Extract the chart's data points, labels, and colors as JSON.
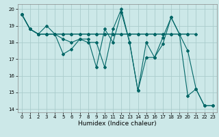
{
  "title": "",
  "xlabel": "Humidex (Indice chaleur)",
  "background_color": "#cce8e8",
  "grid_color": "#aacccc",
  "line_color": "#006666",
  "xlim": [
    -0.5,
    23.5
  ],
  "ylim": [
    13.8,
    20.3
  ],
  "yticks": [
    14,
    15,
    16,
    17,
    18,
    19,
    20
  ],
  "xticks": [
    0,
    1,
    2,
    3,
    4,
    5,
    6,
    7,
    8,
    9,
    10,
    11,
    12,
    13,
    14,
    15,
    16,
    17,
    18,
    19,
    20,
    21,
    22,
    23
  ],
  "series1_x": [
    0,
    1,
    2,
    3,
    4,
    5,
    6,
    7,
    8,
    9,
    10,
    11,
    12,
    13,
    14,
    15,
    16,
    17,
    18,
    19,
    20
  ],
  "series1_y": [
    19.7,
    18.8,
    18.5,
    18.5,
    18.5,
    18.5,
    18.5,
    18.5,
    18.5,
    18.5,
    18.5,
    18.5,
    18.5,
    18.5,
    18.5,
    18.5,
    18.5,
    18.5,
    18.5,
    18.5,
    18.5
  ],
  "series2_x": [
    0,
    1,
    2,
    3,
    4,
    5,
    6,
    7,
    8,
    9,
    10,
    11,
    12,
    13,
    14,
    15,
    16,
    17,
    18,
    19,
    20,
    21,
    22,
    23
  ],
  "series2_y": [
    19.7,
    18.8,
    18.5,
    19.0,
    18.5,
    17.3,
    17.6,
    18.2,
    18.2,
    16.5,
    18.8,
    18.0,
    19.8,
    18.0,
    15.1,
    18.0,
    17.1,
    18.3,
    19.5,
    18.5,
    17.5,
    15.2,
    14.2,
    14.2
  ],
  "series3_x": [
    0,
    1,
    2,
    3,
    4,
    5,
    6,
    7,
    8,
    9,
    10,
    11,
    12,
    13,
    14,
    15,
    16,
    17,
    18,
    19,
    20,
    21
  ],
  "series3_y": [
    19.7,
    18.8,
    18.5,
    18.5,
    18.5,
    18.5,
    18.5,
    18.5,
    18.5,
    18.5,
    18.5,
    18.5,
    18.5,
    18.5,
    18.5,
    18.5,
    18.5,
    18.5,
    18.5,
    18.5,
    18.5,
    18.5
  ],
  "series4_x": [
    0,
    1,
    2,
    3,
    4,
    5,
    6,
    7,
    8,
    9,
    10,
    11,
    12,
    13,
    14,
    15,
    16,
    17,
    18,
    19,
    20,
    21,
    22,
    23
  ],
  "series4_y": [
    19.7,
    18.8,
    18.5,
    18.5,
    18.5,
    18.2,
    18.0,
    18.2,
    18.0,
    18.0,
    16.5,
    18.8,
    20.0,
    18.0,
    15.1,
    17.1,
    17.1,
    17.9,
    19.5,
    18.5,
    14.8,
    15.2,
    14.2,
    14.2
  ]
}
